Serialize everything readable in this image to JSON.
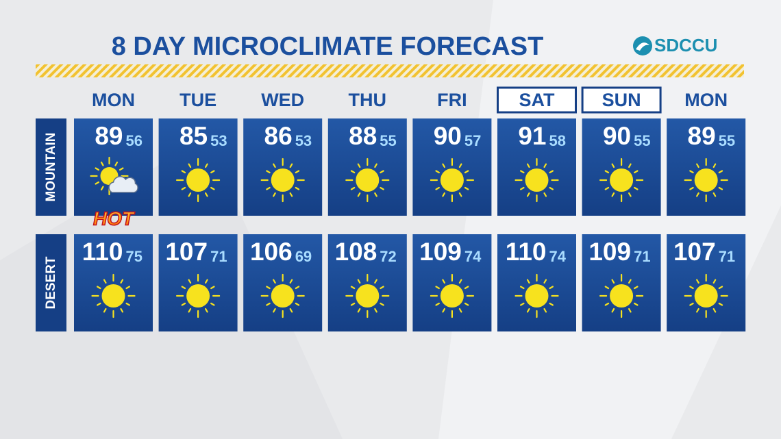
{
  "header": {
    "title": "8 DAY MICROCLIMATE FORECAST",
    "logo": "SDCCU"
  },
  "days": [
    {
      "label": "MON",
      "boxed": false
    },
    {
      "label": "TUE",
      "boxed": false
    },
    {
      "label": "WED",
      "boxed": false
    },
    {
      "label": "THU",
      "boxed": false
    },
    {
      "label": "FRI",
      "boxed": false
    },
    {
      "label": "SAT",
      "boxed": true
    },
    {
      "label": "SUN",
      "boxed": true
    },
    {
      "label": "MON",
      "boxed": false
    }
  ],
  "rows": [
    {
      "label": "MOUNTAIN",
      "cells": [
        {
          "high": 89,
          "low": 56,
          "icon": "partly-sunny",
          "badge": "HOT"
        },
        {
          "high": 85,
          "low": 53,
          "icon": "sunny"
        },
        {
          "high": 86,
          "low": 53,
          "icon": "sunny"
        },
        {
          "high": 88,
          "low": 55,
          "icon": "sunny"
        },
        {
          "high": 90,
          "low": 57,
          "icon": "sunny"
        },
        {
          "high": 91,
          "low": 58,
          "icon": "sunny"
        },
        {
          "high": 90,
          "low": 55,
          "icon": "sunny"
        },
        {
          "high": 89,
          "low": 55,
          "icon": "sunny"
        }
      ]
    },
    {
      "label": "DESERT",
      "cells": [
        {
          "high": 110,
          "low": 75,
          "icon": "sunny"
        },
        {
          "high": 107,
          "low": 71,
          "icon": "sunny"
        },
        {
          "high": 106,
          "low": 69,
          "icon": "sunny"
        },
        {
          "high": 108,
          "low": 72,
          "icon": "sunny"
        },
        {
          "high": 109,
          "low": 74,
          "icon": "sunny"
        },
        {
          "high": 110,
          "low": 74,
          "icon": "sunny"
        },
        {
          "high": 109,
          "low": 71,
          "icon": "sunny"
        },
        {
          "high": 107,
          "low": 71,
          "icon": "sunny"
        }
      ]
    }
  ]
}
